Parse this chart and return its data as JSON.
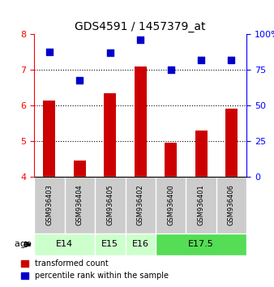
{
  "title": "GDS4591 / 1457379_at",
  "samples": [
    "GSM936403",
    "GSM936404",
    "GSM936405",
    "GSM936402",
    "GSM936400",
    "GSM936401",
    "GSM936406"
  ],
  "transformed_counts": [
    6.15,
    4.45,
    6.35,
    7.1,
    4.95,
    5.3,
    5.9
  ],
  "percentile_ranks": [
    88,
    68,
    87,
    96,
    75,
    82,
    82
  ],
  "age_groups": [
    {
      "label": "E14",
      "start": 0,
      "end": 2,
      "color": "#ccffcc"
    },
    {
      "label": "E15",
      "start": 2,
      "end": 3,
      "color": "#ccffcc"
    },
    {
      "label": "E16",
      "start": 3,
      "end": 4,
      "color": "#ccffcc"
    },
    {
      "label": "E17.5",
      "start": 4,
      "end": 7,
      "color": "#55dd55"
    }
  ],
  "age_group_colors": [
    "#ccffcc",
    "#ccffcc",
    "#ccffcc",
    "#55dd55"
  ],
  "bar_color": "#cc0000",
  "dot_color": "#0000cc",
  "ylim_left": [
    4,
    8
  ],
  "ylim_right": [
    0,
    100
  ],
  "yticks_left": [
    4,
    5,
    6,
    7,
    8
  ],
  "yticks_right": [
    0,
    25,
    50,
    75,
    100
  ],
  "ytick_labels_right": [
    "0",
    "25",
    "50",
    "75",
    "100%"
  ],
  "background_color": "#ffffff",
  "sample_box_color": "#cccccc",
  "grid_color": "#000000",
  "bar_width": 0.4
}
